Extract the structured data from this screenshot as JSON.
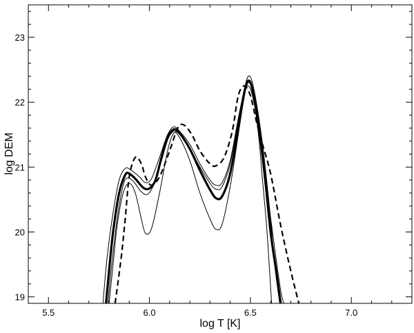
{
  "chart_data": {
    "type": "line",
    "title": "",
    "xlabel": "log  T  [K]",
    "ylabel": "log  DEM",
    "xlim": [
      5.4,
      7.3
    ],
    "ylim": [
      18.9,
      23.5
    ],
    "x_ticks": [
      5.5,
      6.0,
      6.5,
      7.0
    ],
    "x_tick_labels": [
      "5.5",
      "6.0",
      "6.5",
      "7.0"
    ],
    "y_ticks": [
      19,
      20,
      21,
      22,
      23
    ],
    "y_tick_labels": [
      "19",
      "20",
      "21",
      "22",
      "23"
    ],
    "grid": false,
    "legend": "none",
    "series": [
      {
        "style": "thick-solid",
        "points": [
          [
            5.785,
            18.9
          ],
          [
            5.8,
            19.4
          ],
          [
            5.82,
            20.0
          ],
          [
            5.85,
            20.6
          ],
          [
            5.88,
            20.88
          ],
          [
            5.9,
            20.9
          ],
          [
            5.93,
            20.82
          ],
          [
            5.97,
            20.68
          ],
          [
            6.0,
            20.67
          ],
          [
            6.03,
            20.8
          ],
          [
            6.06,
            21.15
          ],
          [
            6.09,
            21.45
          ],
          [
            6.12,
            21.58
          ],
          [
            6.15,
            21.52
          ],
          [
            6.2,
            21.28
          ],
          [
            6.25,
            20.95
          ],
          [
            6.3,
            20.65
          ],
          [
            6.33,
            20.52
          ],
          [
            6.36,
            20.55
          ],
          [
            6.4,
            20.9
          ],
          [
            6.44,
            21.6
          ],
          [
            6.47,
            22.15
          ],
          [
            6.49,
            22.33
          ],
          [
            6.51,
            22.2
          ],
          [
            6.54,
            21.65
          ],
          [
            6.57,
            20.9
          ],
          [
            6.6,
            20.0
          ],
          [
            6.63,
            19.35
          ],
          [
            6.65,
            18.9
          ]
        ]
      },
      {
        "style": "thin-solid",
        "points": [
          [
            5.77,
            18.9
          ],
          [
            5.79,
            19.6
          ],
          [
            5.82,
            20.3
          ],
          [
            5.85,
            20.8
          ],
          [
            5.88,
            20.98
          ],
          [
            5.91,
            20.95
          ],
          [
            5.95,
            20.85
          ],
          [
            5.98,
            20.76
          ],
          [
            6.01,
            20.82
          ],
          [
            6.05,
            21.15
          ],
          [
            6.09,
            21.5
          ],
          [
            6.12,
            21.62
          ],
          [
            6.15,
            21.55
          ],
          [
            6.2,
            21.35
          ],
          [
            6.25,
            21.05
          ],
          [
            6.3,
            20.8
          ],
          [
            6.33,
            20.72
          ],
          [
            6.36,
            20.76
          ],
          [
            6.4,
            21.1
          ],
          [
            6.44,
            21.75
          ],
          [
            6.47,
            22.2
          ],
          [
            6.49,
            22.4
          ],
          [
            6.51,
            22.3
          ],
          [
            6.54,
            21.8
          ],
          [
            6.57,
            21.1
          ],
          [
            6.6,
            20.2
          ],
          [
            6.62,
            19.5
          ],
          [
            6.645,
            18.9
          ]
        ]
      },
      {
        "style": "thin-solid",
        "points": [
          [
            5.8,
            18.9
          ],
          [
            5.82,
            19.5
          ],
          [
            5.84,
            20.1
          ],
          [
            5.87,
            20.6
          ],
          [
            5.9,
            20.75
          ],
          [
            5.93,
            20.6
          ],
          [
            5.96,
            20.2
          ],
          [
            5.98,
            19.98
          ],
          [
            6.01,
            20.05
          ],
          [
            6.05,
            20.6
          ],
          [
            6.09,
            21.25
          ],
          [
            6.12,
            21.52
          ],
          [
            6.15,
            21.45
          ],
          [
            6.2,
            21.1
          ],
          [
            6.25,
            20.6
          ],
          [
            6.3,
            20.2
          ],
          [
            6.33,
            20.04
          ],
          [
            6.36,
            20.12
          ],
          [
            6.4,
            20.7
          ],
          [
            6.44,
            21.5
          ],
          [
            6.47,
            22.1
          ],
          [
            6.49,
            22.3
          ],
          [
            6.51,
            22.15
          ],
          [
            6.54,
            21.5
          ],
          [
            6.56,
            20.8
          ],
          [
            6.58,
            20.1
          ],
          [
            6.595,
            19.4
          ],
          [
            6.605,
            18.9
          ]
        ]
      },
      {
        "style": "thin-solid",
        "points": [
          [
            5.795,
            18.9
          ],
          [
            5.81,
            19.4
          ],
          [
            5.84,
            20.2
          ],
          [
            5.87,
            20.72
          ],
          [
            5.89,
            20.83
          ],
          [
            5.92,
            20.78
          ],
          [
            5.96,
            20.62
          ],
          [
            5.99,
            20.58
          ],
          [
            6.02,
            20.72
          ],
          [
            6.06,
            21.1
          ],
          [
            6.09,
            21.42
          ],
          [
            6.12,
            21.55
          ],
          [
            6.15,
            21.5
          ],
          [
            6.2,
            21.28
          ],
          [
            6.25,
            21.0
          ],
          [
            6.3,
            20.75
          ],
          [
            6.33,
            20.66
          ],
          [
            6.36,
            20.7
          ],
          [
            6.4,
            21.05
          ],
          [
            6.44,
            21.7
          ],
          [
            6.47,
            22.15
          ],
          [
            6.49,
            22.25
          ],
          [
            6.51,
            22.1
          ],
          [
            6.54,
            21.6
          ],
          [
            6.58,
            20.7
          ],
          [
            6.62,
            19.75
          ],
          [
            6.65,
            19.1
          ],
          [
            6.665,
            18.9
          ]
        ]
      },
      {
        "style": "thick-dashed",
        "points": [
          [
            5.83,
            18.9
          ],
          [
            5.86,
            19.6
          ],
          [
            5.88,
            20.2
          ],
          [
            5.9,
            20.85
          ],
          [
            5.93,
            21.15
          ],
          [
            5.96,
            21.05
          ],
          [
            5.98,
            20.85
          ],
          [
            6.01,
            20.72
          ],
          [
            6.05,
            20.85
          ],
          [
            6.1,
            21.25
          ],
          [
            6.14,
            21.6
          ],
          [
            6.17,
            21.65
          ],
          [
            6.21,
            21.5
          ],
          [
            6.25,
            21.25
          ],
          [
            6.3,
            21.05
          ],
          [
            6.33,
            21.02
          ],
          [
            6.37,
            21.15
          ],
          [
            6.41,
            21.55
          ],
          [
            6.44,
            22.1
          ],
          [
            6.47,
            22.25
          ],
          [
            6.5,
            22.1
          ],
          [
            6.53,
            21.7
          ],
          [
            6.56,
            21.35
          ],
          [
            6.6,
            20.9
          ],
          [
            6.65,
            20.1
          ],
          [
            6.7,
            19.4
          ],
          [
            6.74,
            18.9
          ]
        ]
      }
    ]
  }
}
